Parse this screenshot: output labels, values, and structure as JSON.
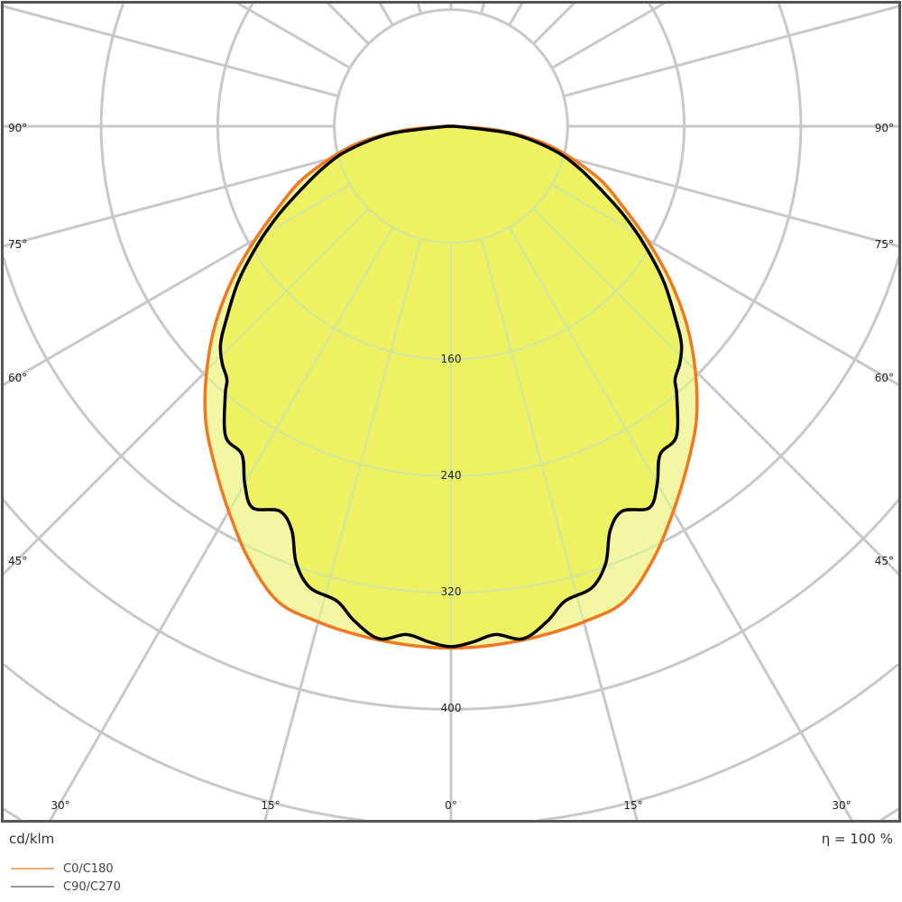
{
  "chart_data": {
    "type": "polar",
    "unit_label": "cd/klm",
    "efficiency_label": "η = 100 %",
    "radial_ticks": [
      "160",
      "240",
      "320",
      "400"
    ],
    "radial_tick_values": [
      160,
      240,
      320,
      400
    ],
    "ring_step": 80,
    "angle_labels": {
      "left": [
        "90°",
        "75°",
        "60°",
        "45°"
      ],
      "bottom": [
        "30°",
        "15°",
        "0°",
        "15°",
        "30°"
      ],
      "right": [
        "90°",
        "75°",
        "60°",
        "45°"
      ]
    },
    "angle_step_deg": 15,
    "grid": true,
    "legend_position": "bottom-left",
    "series": [
      {
        "name": "C0/C180",
        "color": "#f07820",
        "legend_color": "#f7a77a",
        "fill": "#f3f6a2",
        "angles": [
          0,
          5,
          10,
          15,
          20,
          25,
          30,
          35,
          40,
          45,
          50,
          55,
          60,
          65,
          70,
          75,
          80,
          85,
          90
        ],
        "values": [
          358,
          357,
          355,
          352,
          347,
          328,
          305,
          283,
          262,
          237,
          211,
          183,
          155,
          130,
          110,
          86,
          63,
          33,
          2
        ]
      },
      {
        "name": "C90/C270",
        "color": "#000000",
        "legend_color": "#999999",
        "fill": "#eef162",
        "angles": [
          0,
          2.5,
          5,
          8,
          11,
          13.5,
          17,
          19.5,
          21.5,
          24,
          27.5,
          30,
          32.5,
          36,
          40,
          41.5,
          44,
          46.5,
          49,
          54,
          59,
          63,
          67,
          72,
          77,
          83,
          90
        ],
        "values": [
          357,
          354,
          350,
          355,
          346,
          335,
          331,
          318,
          298,
          289,
          295,
          283,
          267,
          263,
          241,
          232,
          226,
          218,
          205,
          180,
          153,
          132,
          112,
          92,
          72,
          42,
          3
        ]
      }
    ]
  }
}
